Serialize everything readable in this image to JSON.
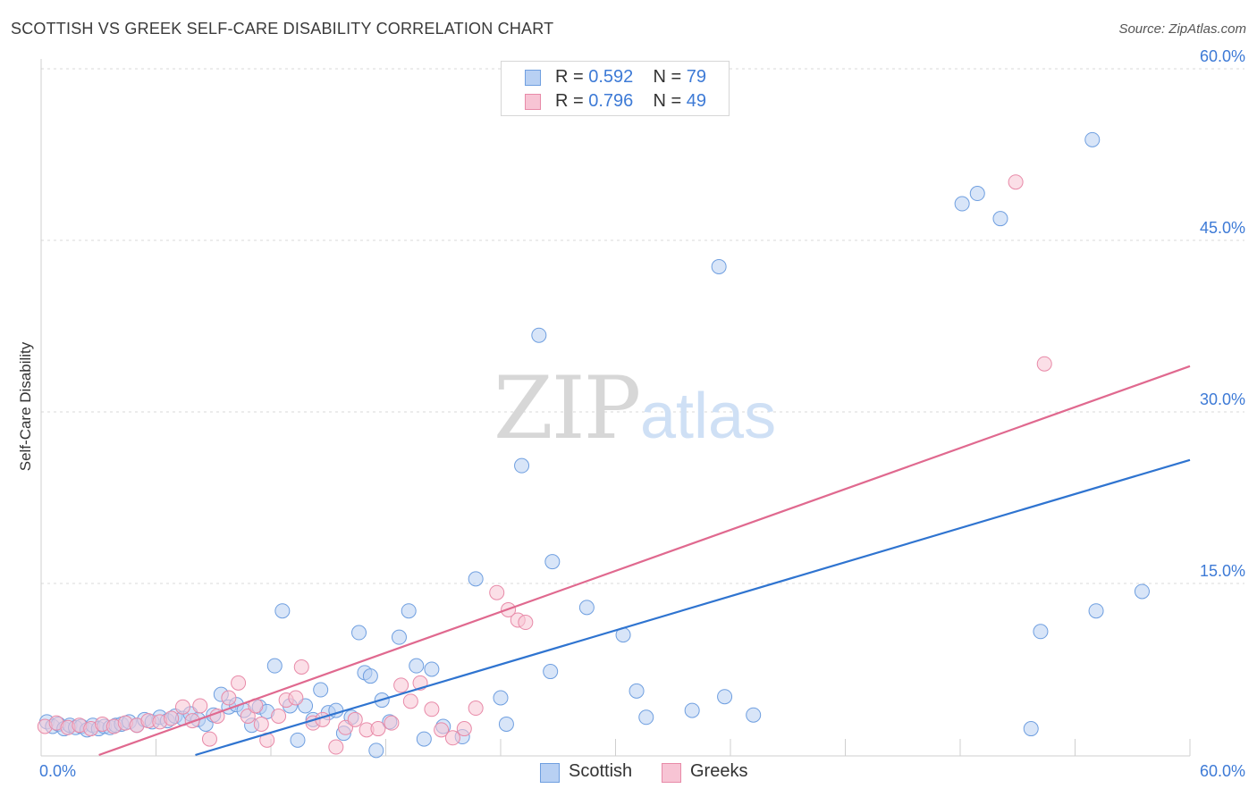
{
  "header": {
    "title": "SCOTTISH VS GREEK SELF-CARE DISABILITY CORRELATION CHART",
    "source": "Source: ZipAtlas.com"
  },
  "watermark": {
    "zip": "ZIP",
    "atlas": "atlas"
  },
  "legend_top": {
    "rows": [
      {
        "r_label": "R = ",
        "r_value": "0.592",
        "n_label": "N = ",
        "n_value": "79"
      },
      {
        "r_label": "R = ",
        "r_value": "0.796",
        "n_label": "N = ",
        "n_value": "49"
      }
    ]
  },
  "legend_bottom": {
    "items": [
      "Scottish",
      "Greeks"
    ]
  },
  "colors": {
    "scottish_fill": "#b8d0f3",
    "scottish_stroke": "#6f9fe0",
    "scottish_line": "#2f74d0",
    "greeks_fill": "#f7c4d4",
    "greeks_stroke": "#e88aa8",
    "greeks_line": "#e0698f",
    "axis_text": "#3d7ad6",
    "grid": "#d8d8d8"
  },
  "chart_data": {
    "type": "scatter",
    "title": "SCOTTISH VS GREEK SELF-CARE DISABILITY CORRELATION CHART",
    "xlabel": "",
    "ylabel": "Self-Care Disability",
    "xlim": [
      0,
      60
    ],
    "ylim": [
      0,
      60
    ],
    "x_tick_labels": [
      "0.0%",
      "60.0%"
    ],
    "y_ticks": [
      15,
      30,
      45,
      60
    ],
    "y_tick_labels": [
      "15.0%",
      "30.0%",
      "45.0%",
      "60.0%"
    ],
    "grid": true,
    "series": [
      {
        "name": "Scottish",
        "R": 0.592,
        "N": 79,
        "trend": {
          "x": [
            0,
            60
          ],
          "y": [
            -4.0,
            25.8
          ]
        },
        "points": [
          [
            0.3,
            2.9
          ],
          [
            0.6,
            2.5
          ],
          [
            0.9,
            2.7
          ],
          [
            1.2,
            2.3
          ],
          [
            1.5,
            2.6
          ],
          [
            1.8,
            2.4
          ],
          [
            2.1,
            2.5
          ],
          [
            2.4,
            2.2
          ],
          [
            2.7,
            2.6
          ],
          [
            3.0,
            2.3
          ],
          [
            3.3,
            2.5
          ],
          [
            3.6,
            2.4
          ],
          [
            3.9,
            2.6
          ],
          [
            4.2,
            2.7
          ],
          [
            4.6,
            2.9
          ],
          [
            5.0,
            2.6
          ],
          [
            5.4,
            3.1
          ],
          [
            5.8,
            2.9
          ],
          [
            6.2,
            3.3
          ],
          [
            6.6,
            3.0
          ],
          [
            7.0,
            3.4
          ],
          [
            7.4,
            3.2
          ],
          [
            7.8,
            3.6
          ],
          [
            8.2,
            3.1
          ],
          [
            8.6,
            2.7
          ],
          [
            9.0,
            3.5
          ],
          [
            9.4,
            5.3
          ],
          [
            9.8,
            4.2
          ],
          [
            10.2,
            4.4
          ],
          [
            10.6,
            3.9
          ],
          [
            11.0,
            2.6
          ],
          [
            11.4,
            4.2
          ],
          [
            11.8,
            3.8
          ],
          [
            12.2,
            7.8
          ],
          [
            12.6,
            12.6
          ],
          [
            13.0,
            4.3
          ],
          [
            13.4,
            1.3
          ],
          [
            13.8,
            4.3
          ],
          [
            14.2,
            3.1
          ],
          [
            14.6,
            5.7
          ],
          [
            15.0,
            3.7
          ],
          [
            15.4,
            3.9
          ],
          [
            15.8,
            1.9
          ],
          [
            16.2,
            3.3
          ],
          [
            16.6,
            10.7
          ],
          [
            16.9,
            7.2
          ],
          [
            17.2,
            6.9
          ],
          [
            17.5,
            0.4
          ],
          [
            17.8,
            4.8
          ],
          [
            18.2,
            2.9
          ],
          [
            18.7,
            10.3
          ],
          [
            19.2,
            12.6
          ],
          [
            19.6,
            7.8
          ],
          [
            20.0,
            1.4
          ],
          [
            20.4,
            7.5
          ],
          [
            21.0,
            2.5
          ],
          [
            22.0,
            1.6
          ],
          [
            22.7,
            15.4
          ],
          [
            24.0,
            5.0
          ],
          [
            24.3,
            2.7
          ],
          [
            25.1,
            25.3
          ],
          [
            26.0,
            36.7
          ],
          [
            26.6,
            7.3
          ],
          [
            26.7,
            16.9
          ],
          [
            28.5,
            12.9
          ],
          [
            30.4,
            10.5
          ],
          [
            31.1,
            5.6
          ],
          [
            31.6,
            3.3
          ],
          [
            34.0,
            3.9
          ],
          [
            35.4,
            42.7
          ],
          [
            35.7,
            5.1
          ],
          [
            37.2,
            3.5
          ],
          [
            48.1,
            48.2
          ],
          [
            48.9,
            49.1
          ],
          [
            50.1,
            46.9
          ],
          [
            51.7,
            2.3
          ],
          [
            52.2,
            10.8
          ],
          [
            54.9,
            53.8
          ],
          [
            55.1,
            12.6
          ],
          [
            57.5,
            14.3
          ]
        ]
      },
      {
        "name": "Greeks",
        "R": 0.796,
        "N": 49,
        "trend": {
          "x": [
            0,
            60
          ],
          "y": [
            -1.8,
            34.0
          ]
        },
        "points": [
          [
            0.2,
            2.5
          ],
          [
            0.8,
            2.8
          ],
          [
            1.4,
            2.4
          ],
          [
            2.0,
            2.6
          ],
          [
            2.6,
            2.3
          ],
          [
            3.2,
            2.7
          ],
          [
            3.8,
            2.5
          ],
          [
            4.4,
            2.8
          ],
          [
            5.0,
            2.6
          ],
          [
            5.6,
            3.0
          ],
          [
            6.2,
            2.9
          ],
          [
            6.8,
            3.2
          ],
          [
            7.4,
            4.2
          ],
          [
            7.9,
            3.0
          ],
          [
            8.3,
            4.3
          ],
          [
            8.8,
            1.4
          ],
          [
            9.2,
            3.4
          ],
          [
            9.8,
            5.0
          ],
          [
            10.3,
            6.3
          ],
          [
            10.8,
            3.4
          ],
          [
            11.2,
            4.3
          ],
          [
            11.5,
            2.7
          ],
          [
            11.8,
            1.3
          ],
          [
            12.4,
            3.4
          ],
          [
            12.8,
            4.8
          ],
          [
            13.3,
            5.0
          ],
          [
            13.6,
            7.7
          ],
          [
            14.2,
            2.8
          ],
          [
            14.7,
            3.1
          ],
          [
            15.4,
            0.7
          ],
          [
            15.9,
            2.4
          ],
          [
            16.4,
            3.1
          ],
          [
            17.0,
            2.2
          ],
          [
            17.6,
            2.3
          ],
          [
            18.3,
            2.8
          ],
          [
            18.8,
            6.1
          ],
          [
            19.3,
            4.7
          ],
          [
            19.8,
            6.3
          ],
          [
            20.4,
            4.0
          ],
          [
            20.9,
            2.2
          ],
          [
            21.5,
            1.5
          ],
          [
            22.1,
            2.3
          ],
          [
            22.7,
            4.1
          ],
          [
            23.8,
            14.2
          ],
          [
            24.4,
            12.7
          ],
          [
            24.9,
            11.8
          ],
          [
            25.3,
            11.6
          ],
          [
            50.9,
            50.1
          ],
          [
            52.4,
            34.2
          ]
        ]
      }
    ]
  }
}
